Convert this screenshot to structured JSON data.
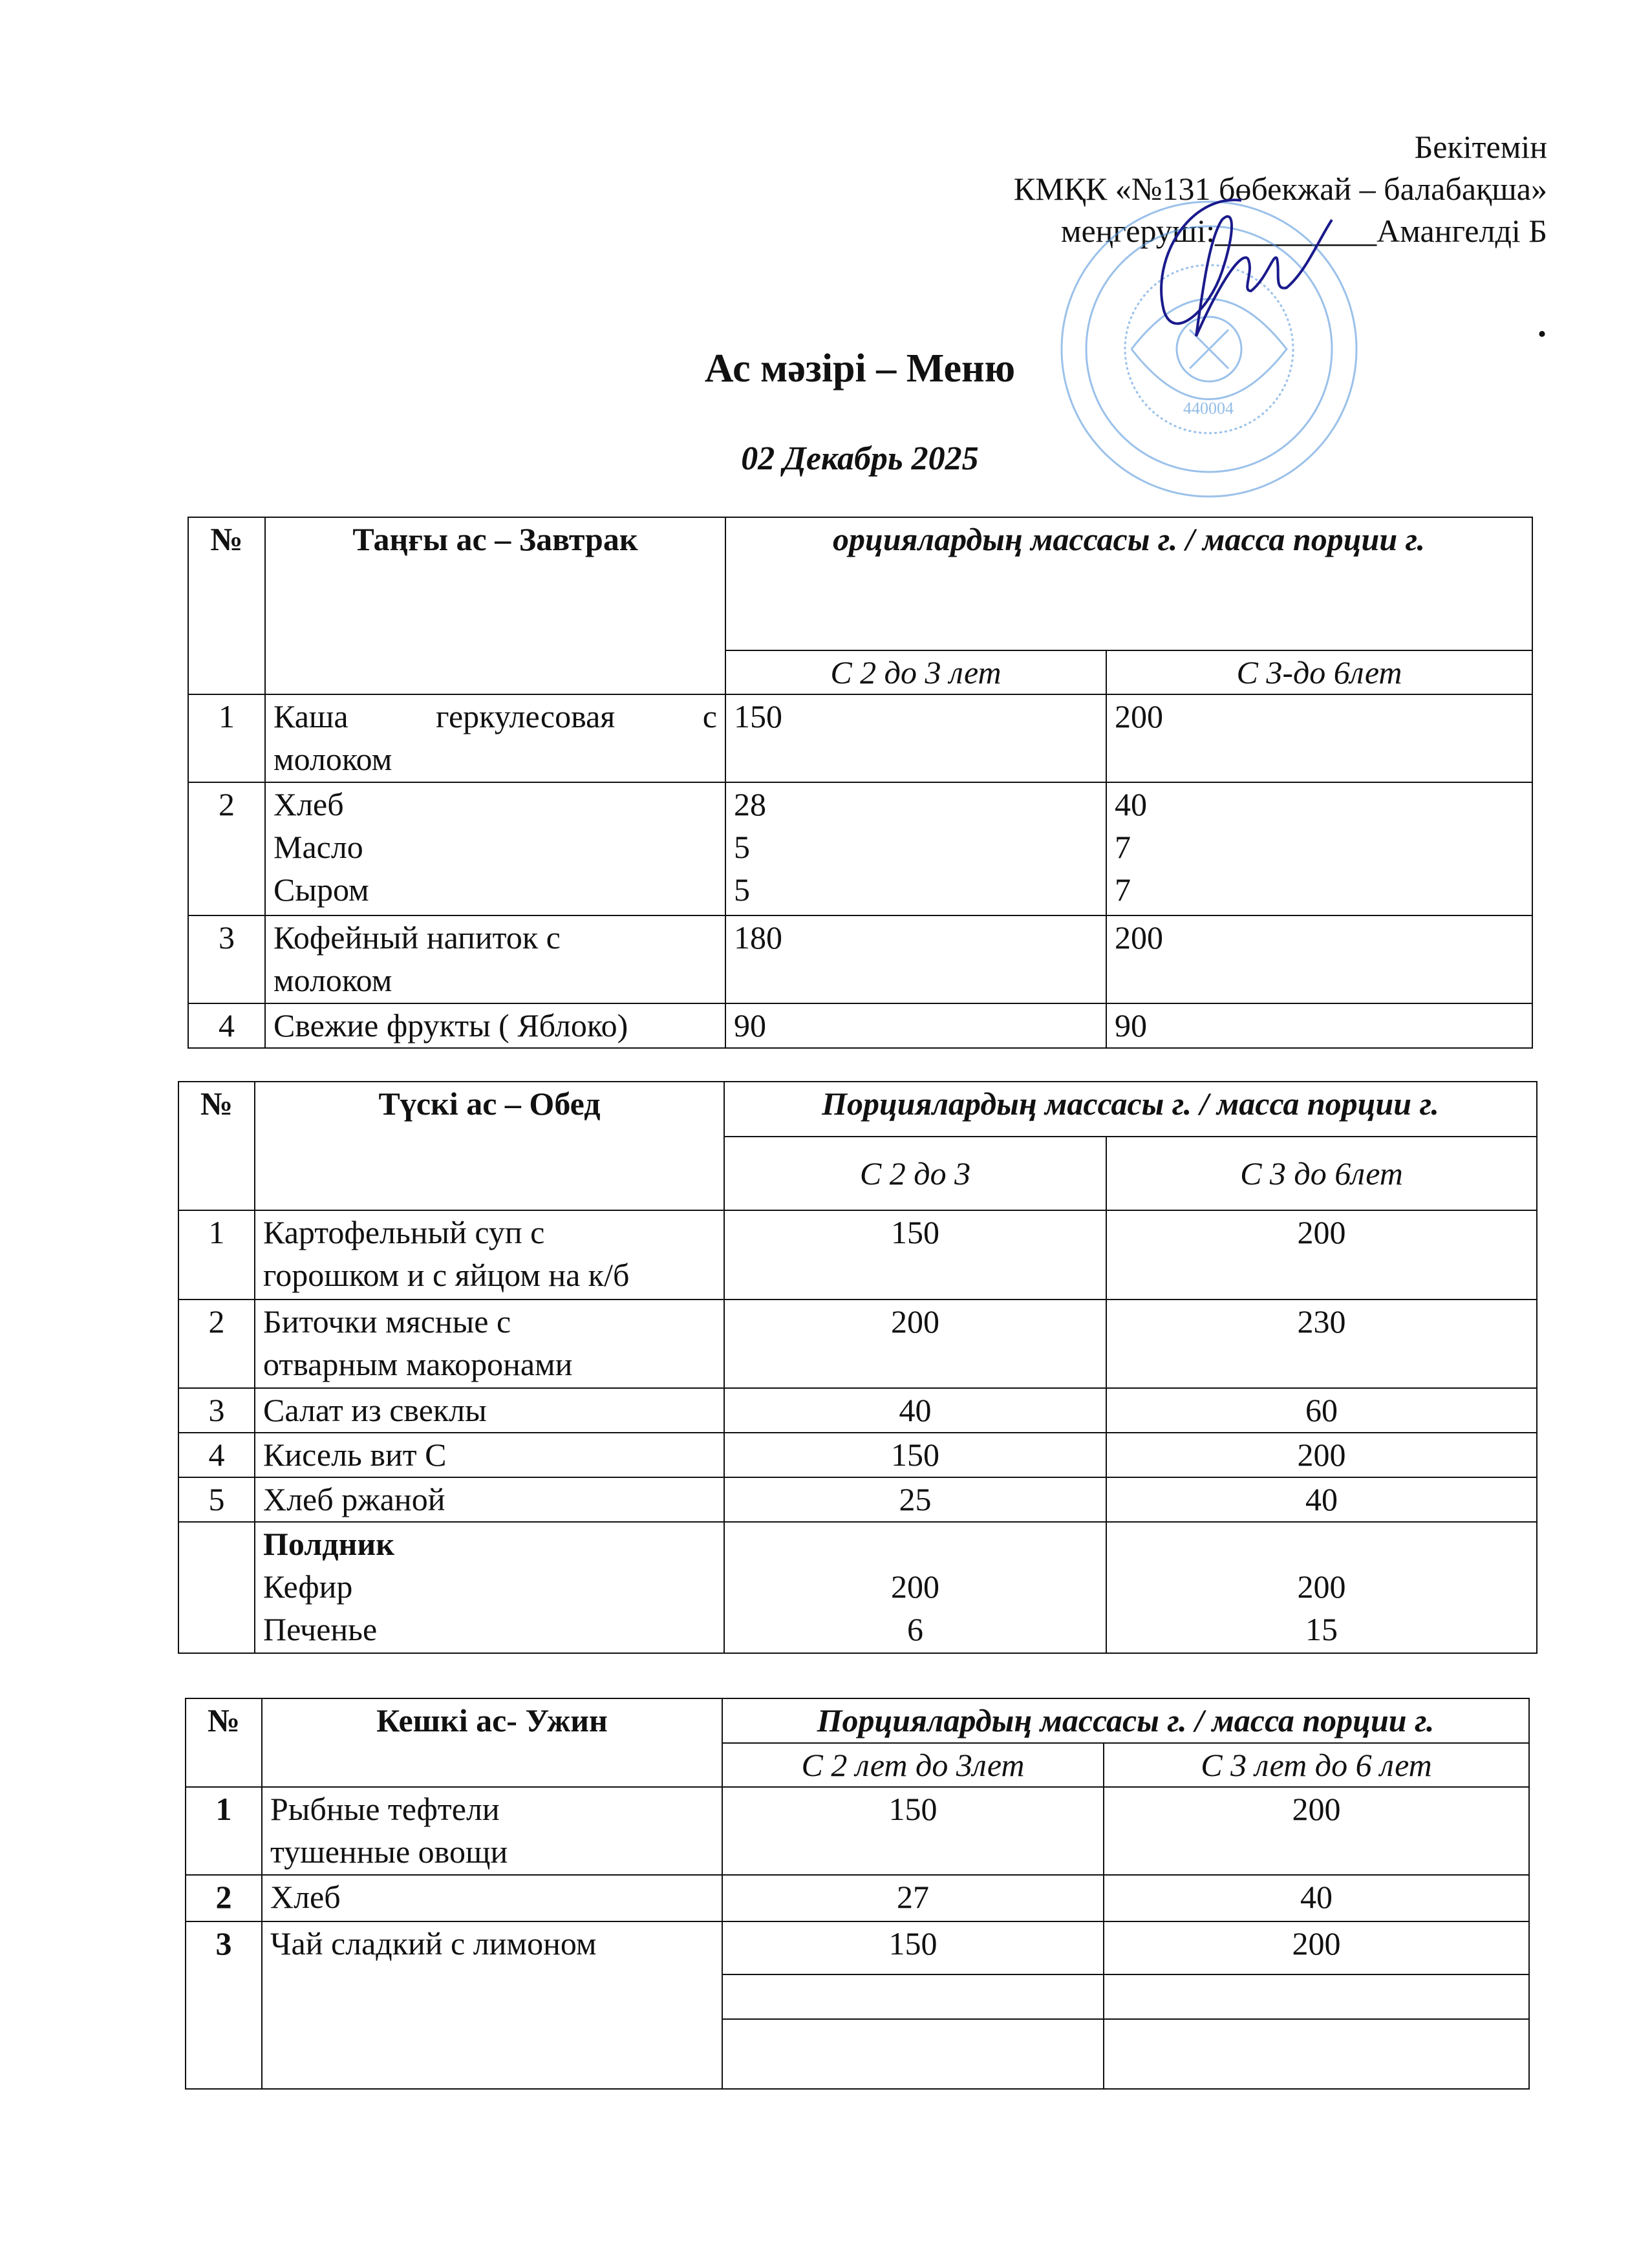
{
  "approval": {
    "line1": "Бекітемін",
    "line2": "КМҚК «№131 бөбекжай – балабақша»",
    "line3_label": "меңгеруші:",
    "line3_blank": "__________",
    "line3_name": "Амангелді Б",
    "dot": "."
  },
  "stamp": {
    "text": "440004",
    "color": "#4a90d9"
  },
  "signature": {
    "color": "#1a1a8c"
  },
  "title": "Ас мәзірі – Меню",
  "date": "02  Декабрь  2025",
  "tables": [
    {
      "key": "breakfast",
      "no_header": "№",
      "title": "Таңғы ас – Завтрак",
      "portion_header": "орциялардың массасы г. / масса порции г.",
      "age_cols": [
        "С 2 до 3 лет",
        "С 3-до 6лет"
      ],
      "rows": [
        {
          "n": "1",
          "dish": [
            "Каша геркулесовая с",
            "молоком"
          ],
          "a": [
            "150"
          ],
          "b": [
            "200"
          ]
        },
        {
          "n": "2",
          "dish": [
            "Хлеб",
            "Масло",
            "Сыром"
          ],
          "a": [
            "28",
            "5",
            "5"
          ],
          "b": [
            "40",
            "7",
            "7"
          ]
        },
        {
          "n": "3",
          "dish": [
            "Кофейный напиток с",
            "молоком"
          ],
          "a": [
            "180"
          ],
          "b": [
            "200"
          ]
        },
        {
          "n": "4",
          "dish": [
            "Свежие фрукты ( Яблоко)"
          ],
          "a": [
            "90"
          ],
          "b": [
            "90"
          ]
        }
      ]
    },
    {
      "key": "lunch",
      "no_header": "№",
      "title": "Түскі  ас – Обед",
      "portion_header": "Порциялардың массасы г. / масса порции г.",
      "age_cols": [
        "С 2 до 3",
        "С 3 до 6лет"
      ],
      "rows": [
        {
          "n": "1",
          "dish": [
            "Картофельный суп с",
            "горошком и с яйцом на к/б"
          ],
          "a": [
            "150"
          ],
          "b": [
            "200"
          ]
        },
        {
          "n": "2",
          "dish": [
            "Биточки мясные с",
            "отварным макоронами"
          ],
          "a": [
            "200"
          ],
          "b": [
            "230"
          ]
        },
        {
          "n": "3",
          "dish": [
            "Салат из свеклы"
          ],
          "a": [
            "40"
          ],
          "b": [
            "60"
          ]
        },
        {
          "n": "4",
          "dish": [
            "Кисель  вит С"
          ],
          "a": [
            "150"
          ],
          "b": [
            "200"
          ]
        },
        {
          "n": "5",
          "dish": [
            "Хлеб ржаной"
          ],
          "a": [
            "25"
          ],
          "b": [
            "40"
          ]
        },
        {
          "n": "",
          "heading": "Полдник",
          "dish": [
            "Кефир",
            "Печенье"
          ],
          "a": [
            "200",
            "6"
          ],
          "b": [
            "200",
            "15"
          ]
        }
      ]
    },
    {
      "key": "dinner",
      "no_header": "№",
      "title": "Кешкі ас- Ужин",
      "portion_header": "Порциялардың массасы г. / масса порции г.",
      "age_cols": [
        "С 2 лет до 3лет",
        "С 3 лет до 6 лет"
      ],
      "rows": [
        {
          "n": "1",
          "dish": [
            "Рыбные тефтели",
            "тушенные овощи"
          ],
          "a": [
            "150"
          ],
          "b": [
            "200"
          ]
        },
        {
          "n": "2",
          "dish": [
            "Хлеб"
          ],
          "a": [
            "27"
          ],
          "b": [
            "40"
          ]
        },
        {
          "n": "3",
          "dish": [
            "Чай сладкий  с лимоном"
          ],
          "a": [
            "150"
          ],
          "b": [
            "200"
          ],
          "empty_value_rows": 2
        }
      ]
    }
  ]
}
